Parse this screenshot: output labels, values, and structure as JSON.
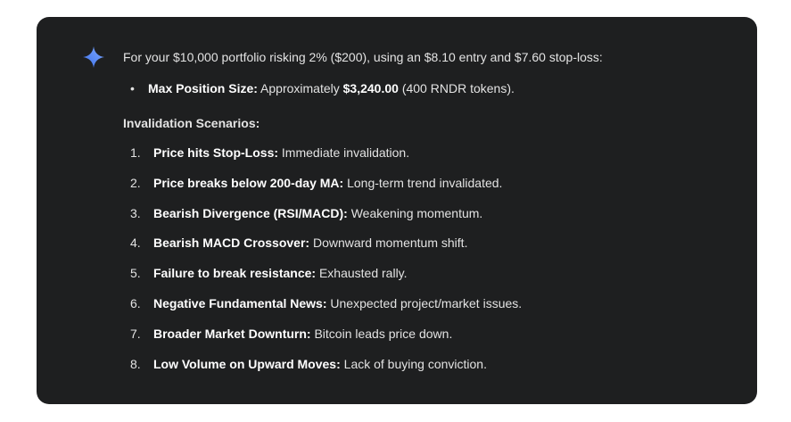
{
  "colors": {
    "card": "#1e1f20",
    "text": "#e3e3e3",
    "sparkle": "#4a86f7"
  },
  "icon": "gemini-sparkle-icon",
  "intro": "For your $10,000 portfolio risking 2% ($200), using an $8.10 entry and $7.60 stop-loss:",
  "bullet": {
    "label": "Max Position Size:",
    "text1": " Approximately ",
    "value": "$3,240.00",
    "text2": " (400 RNDR tokens)."
  },
  "heading": "Invalidation Scenarios:",
  "items": [
    {
      "num": "1.",
      "label": "Price hits Stop-Loss:",
      "text": " Immediate invalidation."
    },
    {
      "num": "2.",
      "label": "Price breaks below 200-day MA:",
      "text": " Long-term trend invalidated."
    },
    {
      "num": "3.",
      "label": "Bearish Divergence (RSI/MACD):",
      "text": " Weakening momentum."
    },
    {
      "num": "4.",
      "label": "Bearish MACD Crossover:",
      "text": " Downward momentum shift."
    },
    {
      "num": "5.",
      "label": "Failure to break resistance:",
      "text": " Exhausted rally."
    },
    {
      "num": "6.",
      "label": "Negative Fundamental News:",
      "text": " Unexpected project/market issues."
    },
    {
      "num": "7.",
      "label": "Broader Market Downturn:",
      "text": " Bitcoin leads price down."
    },
    {
      "num": "8.",
      "label": "Low Volume on Upward Moves:",
      "text": " Lack of buying conviction."
    }
  ]
}
